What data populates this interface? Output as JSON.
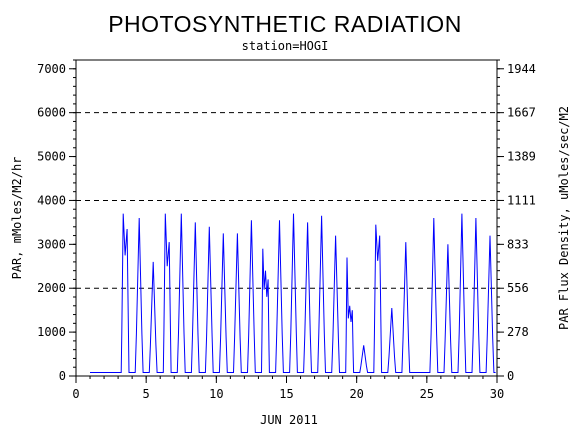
{
  "chart_data": {
    "type": "line",
    "title": "PHOTOSYNTHETIC RADIATION",
    "subtitle": "station=HOGI",
    "xlabel": "JUN 2011",
    "ylabel": "PAR, mMoles/M2/hr",
    "ylabel_right": "PAR Flux Density, uMoles/sec/M2",
    "xlim": [
      0,
      30
    ],
    "ylim": [
      0,
      7200
    ],
    "x_ticks": [
      0,
      5,
      10,
      15,
      20,
      25,
      30
    ],
    "y_ticks": [
      0,
      1000,
      2000,
      3000,
      4000,
      5000,
      6000,
      7000
    ],
    "y_ticks_right": [
      0,
      278,
      556,
      833,
      1111,
      1389,
      1667,
      1944
    ],
    "y_minor_step": 200,
    "x_minor_step": 1,
    "grid_lines_y": [
      2000,
      4000,
      6000
    ],
    "grid": "dashed horizontal",
    "series_color": "#0000ff",
    "baseline": 80,
    "series_start_x": 1.0,
    "series_end_x": 29.9,
    "daily_peaks": [
      {
        "x": 3.5,
        "values": [
          3700,
          3350
        ]
      },
      {
        "x": 4.5,
        "values": [
          3600
        ]
      },
      {
        "x": 5.5,
        "values": [
          2600
        ]
      },
      {
        "x": 6.5,
        "values": [
          3700,
          3050
        ]
      },
      {
        "x": 7.5,
        "values": [
          3700
        ]
      },
      {
        "x": 8.5,
        "values": [
          3500
        ]
      },
      {
        "x": 9.5,
        "values": [
          3400
        ]
      },
      {
        "x": 10.5,
        "values": [
          3250
        ]
      },
      {
        "x": 11.5,
        "values": [
          3250
        ]
      },
      {
        "x": 12.5,
        "values": [
          3550
        ]
      },
      {
        "x": 13.5,
        "values": [
          2900,
          2400,
          2200
        ]
      },
      {
        "x": 14.5,
        "values": [
          3550
        ]
      },
      {
        "x": 15.5,
        "values": [
          3700
        ]
      },
      {
        "x": 16.5,
        "values": [
          3500
        ]
      },
      {
        "x": 17.5,
        "values": [
          3650
        ]
      },
      {
        "x": 18.5,
        "values": [
          3200
        ]
      },
      {
        "x": 19.5,
        "values": [
          2700,
          1600,
          1500
        ]
      },
      {
        "x": 20.5,
        "values": [
          700
        ]
      },
      {
        "x": 21.5,
        "values": [
          3450,
          3200
        ]
      },
      {
        "x": 22.5,
        "values": [
          1550
        ]
      },
      {
        "x": 23.5,
        "values": [
          3050
        ]
      },
      {
        "x": 25.5,
        "values": [
          3600
        ]
      },
      {
        "x": 26.5,
        "values": [
          3000
        ]
      },
      {
        "x": 27.5,
        "values": [
          3700
        ]
      },
      {
        "x": 28.5,
        "values": [
          3600
        ]
      },
      {
        "x": 29.5,
        "values": [
          3200
        ]
      }
    ]
  }
}
